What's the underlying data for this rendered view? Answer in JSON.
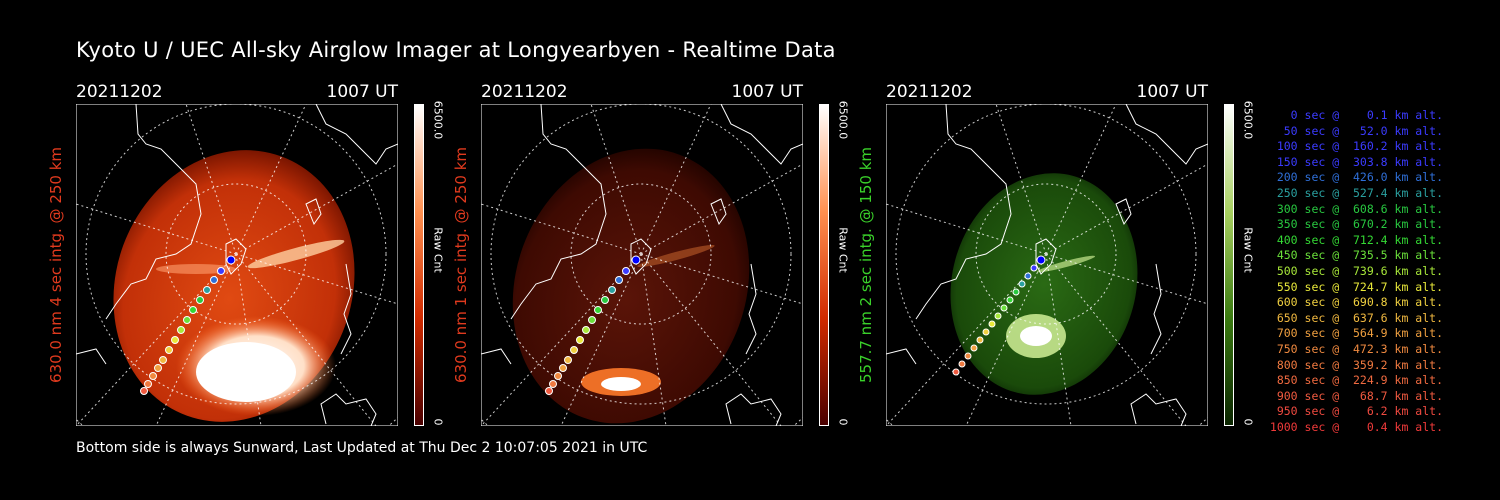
{
  "title": "Kyoto U / UEC All-sky Airglow Imager at Longyearbyen - Realtime Data",
  "footer": "Bottom side is always Sunward, Last Updated at Thu Dec  2 10:07:05 2021 in UTC",
  "panels": [
    {
      "date": "20211202",
      "time": "1007 UT",
      "label": "630.0 nm 4 sec intg. @ 250 km",
      "label_color": "#e03a1e",
      "colorbar": {
        "max": "6500.0",
        "unit": "Raw Cnt",
        "min": "0",
        "top_color": "#ffffff",
        "bottom_color": "#7a0000"
      },
      "image_colors": [
        "#ffffff",
        "#ff6a20",
        "#c42a05",
        "#5a0a00"
      ]
    },
    {
      "date": "20211202",
      "time": "1007 UT",
      "label": "630.0 nm 1 sec intg. @ 250 km",
      "label_color": "#e03a1e",
      "colorbar": {
        "max": "6500.0",
        "unit": "Raw Cnt",
        "min": "0",
        "top_color": "#ffffff",
        "bottom_color": "#7a0000"
      },
      "image_colors": [
        "#ffffff",
        "#ff6a20",
        "#5e1408",
        "#2a0300"
      ]
    },
    {
      "date": "20211202",
      "time": "1007 UT",
      "label": "557.7 nm 2 sec intg. @ 150 km",
      "label_color": "#3ad12a",
      "colorbar": {
        "max": "6500.0",
        "unit": "Raw Cnt",
        "min": "0",
        "top_color": "#ffffff",
        "bottom_color": "#1c4000"
      },
      "image_colors": [
        "#ffffff",
        "#9ac84a",
        "#1f5a0e",
        "#0a2404"
      ]
    }
  ],
  "legend": [
    {
      "text": "   0 sec @    0.1 km alt.",
      "color": "#3b3bff"
    },
    {
      "text": "  50 sec @   52.0 km alt.",
      "color": "#3b3bff"
    },
    {
      "text": " 100 sec @  160.2 km alt.",
      "color": "#3b3bff"
    },
    {
      "text": " 150 sec @  303.8 km alt.",
      "color": "#3b3bff"
    },
    {
      "text": " 200 sec @  426.0 km alt.",
      "color": "#2f6fd8"
    },
    {
      "text": " 250 sec @  527.4 km alt.",
      "color": "#2aa0a0"
    },
    {
      "text": " 300 sec @  608.6 km alt.",
      "color": "#28c840"
    },
    {
      "text": " 350 sec @  670.2 km alt.",
      "color": "#28c840"
    },
    {
      "text": " 400 sec @  712.4 km alt.",
      "color": "#34d834"
    },
    {
      "text": " 450 sec @  735.5 km alt.",
      "color": "#6ae03a"
    },
    {
      "text": " 500 sec @  739.6 km alt.",
      "color": "#a8e83a"
    },
    {
      "text": " 550 sec @  724.7 km alt.",
      "color": "#e8e83a"
    },
    {
      "text": " 600 sec @  690.8 km alt.",
      "color": "#f0d040"
    },
    {
      "text": " 650 sec @  637.6 km alt.",
      "color": "#f0b840"
    },
    {
      "text": " 700 sec @  564.9 km alt.",
      "color": "#f0a040"
    },
    {
      "text": " 750 sec @  472.3 km alt.",
      "color": "#f08a40"
    },
    {
      "text": " 800 sec @  359.2 km alt.",
      "color": "#f07a40"
    },
    {
      "text": " 850 sec @  224.9 km alt.",
      "color": "#f06a40"
    },
    {
      "text": " 900 sec @   68.7 km alt.",
      "color": "#f05a40"
    },
    {
      "text": " 950 sec @    6.2 km alt.",
      "color": "#f04a40"
    },
    {
      "text": "1000 sec @    0.4 km alt.",
      "color": "#f03a3a"
    }
  ]
}
